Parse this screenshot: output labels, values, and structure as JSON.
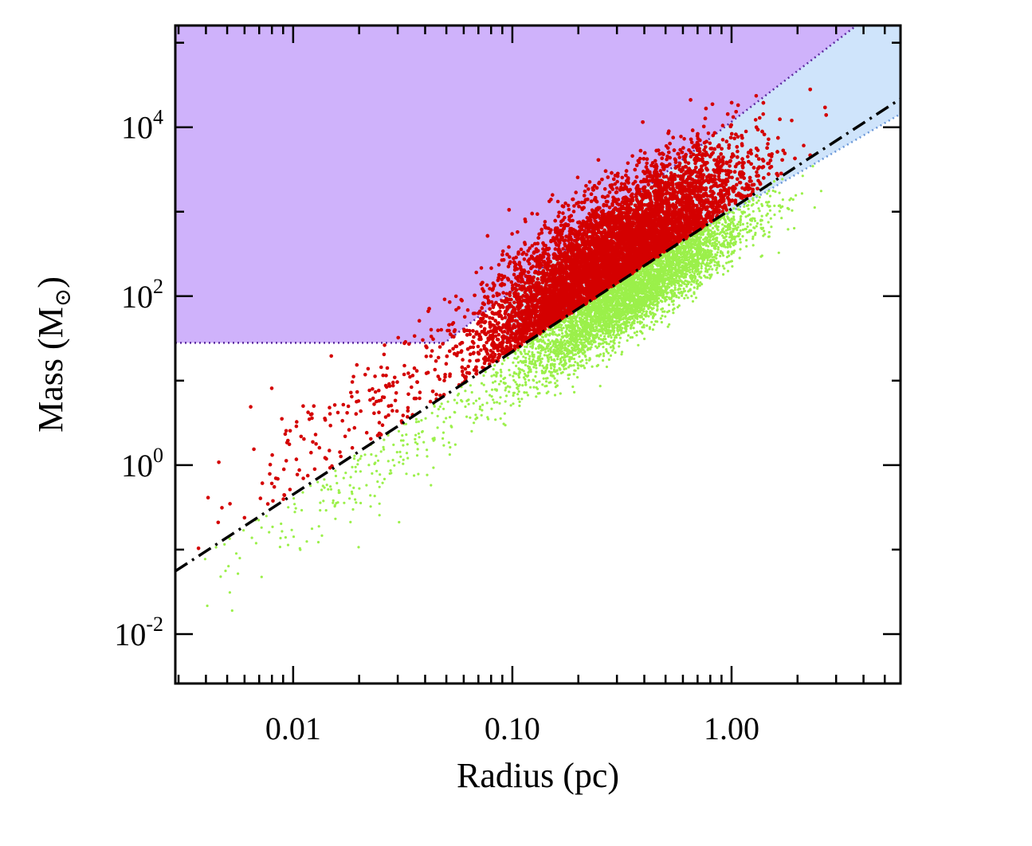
{
  "chart_data": {
    "type": "scatter",
    "xlabel": "Radius (pc)",
    "ylabel": {
      "main": "Mass (M",
      "subscript": "⊙",
      "close": ")"
    },
    "x_scale": "log",
    "y_scale": "log",
    "xlim": [
      0.0029,
      5.9
    ],
    "ylim": [
      0.0026,
      160000
    ],
    "x_ticks": [
      {
        "value": 0.01,
        "label": "0.01"
      },
      {
        "value": 0.1,
        "label": "0.10"
      },
      {
        "value": 1.0,
        "label": "1.00"
      }
    ],
    "y_ticks": [
      {
        "value": 0.01,
        "base": "10",
        "exp": "-2"
      },
      {
        "value": 1,
        "base": "10",
        "exp": "0"
      },
      {
        "value": 100,
        "base": "10",
        "exp": "2"
      },
      {
        "value": 10000,
        "base": "10",
        "exp": "4"
      }
    ],
    "regions": [
      {
        "name": "purple-region",
        "color": "#cfb2fb",
        "border_color": "#5b2aa0",
        "lower_mass": 28,
        "boundary": {
          "coef": 11600,
          "exp": 2.0
        }
      },
      {
        "name": "blue-region",
        "color": "#cfe4fb",
        "border_color": "#6c98d8",
        "boundary": {
          "coef": 1000,
          "exp": 1.5
        }
      }
    ],
    "threshold_line": {
      "style": "dash-dot",
      "color": "#000000",
      "coef": 1080,
      "exp": 1.69
    },
    "series": [
      {
        "color": "#d40000",
        "clusters": [
          {
            "logx_center": -0.5,
            "logy_offset": 0.35,
            "logx_sd": 0.26,
            "logy_sd": 0.38,
            "count": 9000
          },
          {
            "logx_center": -0.85,
            "logy_offset": 0.45,
            "logx_sd": 0.18,
            "logy_sd": 0.4,
            "count": 900
          },
          {
            "logx_center": -1.6,
            "logy_offset": 0.45,
            "logx_sd": 0.4,
            "logy_sd": 0.32,
            "count": 260
          }
        ]
      },
      {
        "color": "#9bf04a",
        "clusters": [
          {
            "logx_center": -0.45,
            "logy_offset": -0.28,
            "logx_sd": 0.26,
            "logy_sd": 0.2,
            "count": 4200
          },
          {
            "logx_center": -1.55,
            "logy_offset": -0.3,
            "logx_sd": 0.45,
            "logy_sd": 0.25,
            "count": 260
          }
        ]
      }
    ]
  }
}
